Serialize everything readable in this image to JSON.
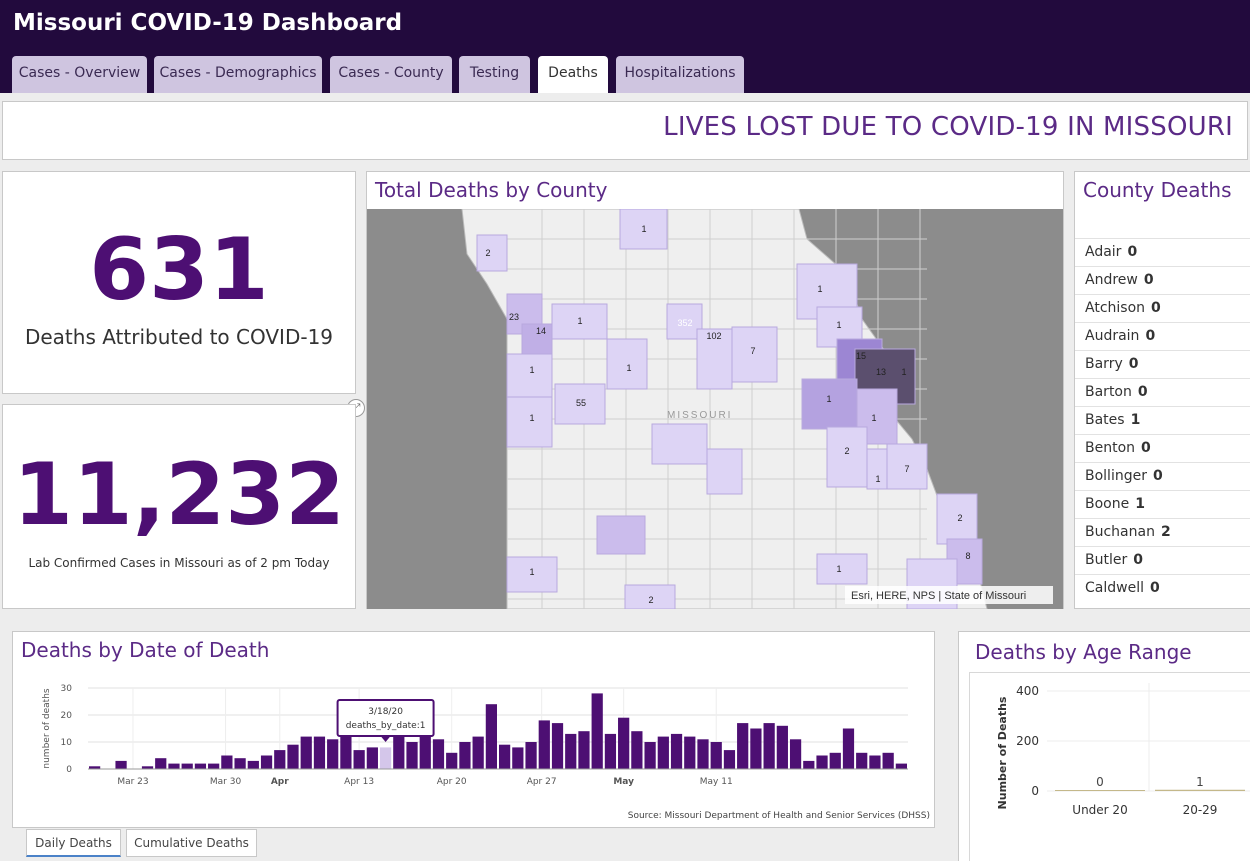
{
  "header": {
    "title": "Missouri COVID-19 Dashboard",
    "tabs": [
      {
        "label": "Cases - Overview",
        "active": false
      },
      {
        "label": "Cases - Demographics",
        "active": false
      },
      {
        "label": "Cases - County",
        "active": false
      },
      {
        "label": "Testing",
        "active": false
      },
      {
        "label": "Deaths",
        "active": true
      },
      {
        "label": "Hospitalizations",
        "active": false
      }
    ]
  },
  "banner": {
    "text": "LIVES LOST DUE TO COVID-19 IN MISSOURI"
  },
  "deaths_card": {
    "value": "631",
    "label": "Deaths Attributed to COVID-19"
  },
  "cases_card": {
    "value": "11,232",
    "label": "Lab Confirmed Cases in Missouri as of 2 pm Today"
  },
  "map": {
    "title": "Total Deaths by County",
    "state_label": "MISSOURI",
    "attribution": "Esri, HERE, NPS | State of Missouri",
    "labels": [
      "1",
      "2",
      "23",
      "14",
      "1",
      "1",
      "1",
      "1",
      "55",
      "352",
      "102",
      "7",
      "1",
      "1",
      "15",
      "13",
      "1",
      "1",
      "1",
      "2",
      "1",
      "7",
      "2",
      "8",
      "1",
      "1",
      "2"
    ]
  },
  "county_list": {
    "title": "County Deaths",
    "items": [
      {
        "name": "Adair",
        "value": "0"
      },
      {
        "name": "Andrew",
        "value": "0"
      },
      {
        "name": "Atchison",
        "value": "0"
      },
      {
        "name": "Audrain",
        "value": "0"
      },
      {
        "name": "Barry",
        "value": "0"
      },
      {
        "name": "Barton",
        "value": "0"
      },
      {
        "name": "Bates",
        "value": "1"
      },
      {
        "name": "Benton",
        "value": "0"
      },
      {
        "name": "Bollinger",
        "value": "0"
      },
      {
        "name": "Boone",
        "value": "1"
      },
      {
        "name": "Buchanan",
        "value": "2"
      },
      {
        "name": "Butler",
        "value": "0"
      },
      {
        "name": "Caldwell",
        "value": "0"
      }
    ]
  },
  "daily_chart": {
    "title": "Deaths by Date of Death",
    "source": "Source: Missouri Department of Health and Senior Services (DHSS)",
    "tooltip": {
      "line1": "3/18/20",
      "line2": "deaths_by_date:1"
    },
    "subtabs": [
      {
        "label": "Daily Deaths",
        "active": true
      },
      {
        "label": "Cumulative Deaths",
        "active": false
      }
    ]
  },
  "age_chart": {
    "title": "Deaths by Age Range"
  },
  "chart_data": [
    {
      "type": "bar",
      "ylabel": "number of deaths",
      "ylim": [
        0,
        30
      ],
      "yticks": [
        "0",
        "10",
        "20",
        "30"
      ],
      "xticks": [
        "Mar 23",
        "Mar 30",
        "Apr",
        "Apr 13",
        "Apr 20",
        "Apr 27",
        "May",
        "May 11"
      ],
      "bold_xticks": [
        "Apr",
        "May"
      ],
      "color": "#4d0f73",
      "highlight_color": "#d4c6ea",
      "highlight_index": 22,
      "values": [
        1,
        0,
        3,
        0,
        1,
        4,
        2,
        2,
        2,
        2,
        5,
        4,
        3,
        5,
        7,
        9,
        12,
        12,
        11,
        12,
        7,
        8,
        8,
        21,
        10,
        13,
        11,
        6,
        10,
        12,
        24,
        9,
        8,
        10,
        18,
        17,
        13,
        14,
        28,
        13,
        19,
        14,
        10,
        12,
        13,
        12,
        11,
        10,
        7,
        17,
        15,
        17,
        16,
        11,
        3,
        5,
        6,
        15,
        6,
        5,
        6,
        2
      ],
      "tick_positions": [
        3.4,
        10.4,
        14.5,
        20.5,
        27.5,
        34.3,
        40.5,
        47.5
      ]
    },
    {
      "type": "bar",
      "ylabel": "Number of Deaths",
      "ylim": [
        0,
        400
      ],
      "yticks": [
        "0",
        "200",
        "400"
      ],
      "categories": [
        "Under 20",
        "20-29"
      ],
      "values": [
        0,
        1
      ],
      "color": "#c4b88a"
    }
  ]
}
